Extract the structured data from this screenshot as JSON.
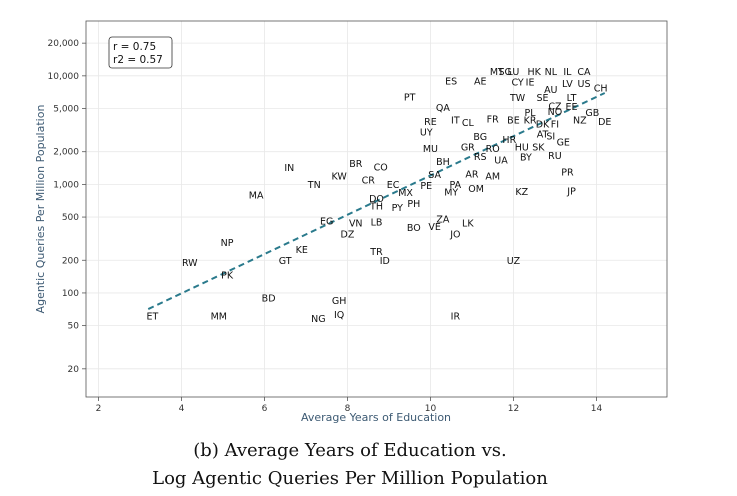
{
  "chart_data": {
    "type": "scatter",
    "title": "",
    "xlabel": "Average Years of Education",
    "ylabel": "Agentic Queries Per Million Population",
    "xlim": [
      1.7,
      15.7
    ],
    "ylim": [
      11,
      32000
    ],
    "yscale": "log",
    "xticks": [
      2,
      4,
      6,
      8,
      10,
      12,
      14
    ],
    "yticks": [
      20,
      50,
      100,
      200,
      500,
      1000,
      2000,
      5000,
      10000,
      20000
    ],
    "ytick_labels": [
      "20",
      "50",
      "100",
      "200",
      "500",
      "1,000",
      "2,000",
      "5,000",
      "10,000",
      "20,000"
    ],
    "grid": true,
    "stats": {
      "r": "r = 0.75",
      "r2": "r2 = 0.57"
    },
    "trend_line": {
      "x": [
        3.2,
        14.2
      ],
      "y": [
        71,
        6950
      ],
      "color": "#2a7a8c"
    },
    "points": [
      {
        "label": "ET",
        "x": 3.3,
        "y": 61
      },
      {
        "label": "MM",
        "x": 4.9,
        "y": 61
      },
      {
        "label": "RW",
        "x": 4.2,
        "y": 190
      },
      {
        "label": "PK",
        "x": 5.1,
        "y": 146
      },
      {
        "label": "NP",
        "x": 5.1,
        "y": 290
      },
      {
        "label": "MA",
        "x": 5.8,
        "y": 800
      },
      {
        "label": "BD",
        "x": 6.1,
        "y": 90
      },
      {
        "label": "GT",
        "x": 6.5,
        "y": 200
      },
      {
        "label": "KE",
        "x": 6.9,
        "y": 250
      },
      {
        "label": "IN",
        "x": 6.6,
        "y": 1430
      },
      {
        "label": "TN",
        "x": 7.2,
        "y": 1000
      },
      {
        "label": "NG",
        "x": 7.3,
        "y": 58
      },
      {
        "label": "GH",
        "x": 7.8,
        "y": 85
      },
      {
        "label": "IQ",
        "x": 7.8,
        "y": 63
      },
      {
        "label": "EG",
        "x": 7.5,
        "y": 460
      },
      {
        "label": "KW",
        "x": 7.8,
        "y": 1200
      },
      {
        "label": "DZ",
        "x": 8.0,
        "y": 350
      },
      {
        "label": "VN",
        "x": 8.2,
        "y": 440
      },
      {
        "label": "BR",
        "x": 8.2,
        "y": 1550
      },
      {
        "label": "CR",
        "x": 8.5,
        "y": 1100
      },
      {
        "label": "CO",
        "x": 8.8,
        "y": 1450
      },
      {
        "label": "LB",
        "x": 8.7,
        "y": 450
      },
      {
        "label": "TH",
        "x": 8.7,
        "y": 630
      },
      {
        "label": "DO",
        "x": 8.7,
        "y": 740
      },
      {
        "label": "TR",
        "x": 8.7,
        "y": 240
      },
      {
        "label": "ID",
        "x": 8.9,
        "y": 200
      },
      {
        "label": "EC",
        "x": 9.1,
        "y": 1000
      },
      {
        "label": "PY",
        "x": 9.2,
        "y": 610
      },
      {
        "label": "MX",
        "x": 9.4,
        "y": 840
      },
      {
        "label": "PH",
        "x": 9.6,
        "y": 670
      },
      {
        "label": "BO",
        "x": 9.6,
        "y": 400
      },
      {
        "label": "PE",
        "x": 9.9,
        "y": 980
      },
      {
        "label": "PT",
        "x": 9.5,
        "y": 6400
      },
      {
        "label": "UY",
        "x": 9.9,
        "y": 3050
      },
      {
        "label": "RE",
        "x": 10.0,
        "y": 3800
      },
      {
        "label": "MU",
        "x": 10.0,
        "y": 2150
      },
      {
        "label": "VE",
        "x": 10.1,
        "y": 410
      },
      {
        "label": "ZA",
        "x": 10.3,
        "y": 480
      },
      {
        "label": "SA",
        "x": 10.1,
        "y": 1230
      },
      {
        "label": "BH",
        "x": 10.3,
        "y": 1620
      },
      {
        "label": "QA",
        "x": 10.3,
        "y": 5100
      },
      {
        "label": "MY",
        "x": 10.5,
        "y": 850
      },
      {
        "label": "PA",
        "x": 10.6,
        "y": 1000
      },
      {
        "label": "JO",
        "x": 10.6,
        "y": 350
      },
      {
        "label": "ES",
        "x": 10.5,
        "y": 9000
      },
      {
        "label": "IT",
        "x": 10.6,
        "y": 3900
      },
      {
        "label": "IR",
        "x": 10.6,
        "y": 61
      },
      {
        "label": "CL",
        "x": 10.9,
        "y": 3700
      },
      {
        "label": "GR",
        "x": 10.9,
        "y": 2200
      },
      {
        "label": "LK",
        "x": 10.9,
        "y": 440
      },
      {
        "label": "AR",
        "x": 11.0,
        "y": 1250
      },
      {
        "label": "OM",
        "x": 11.1,
        "y": 920
      },
      {
        "label": "AE",
        "x": 11.2,
        "y": 9000
      },
      {
        "label": "BG",
        "x": 11.2,
        "y": 2750
      },
      {
        "label": "RS",
        "x": 11.2,
        "y": 1800
      },
      {
        "label": "FR",
        "x": 11.5,
        "y": 4000
      },
      {
        "label": "RO",
        "x": 11.5,
        "y": 2150
      },
      {
        "label": "AM",
        "x": 11.5,
        "y": 1200
      },
      {
        "label": "MT",
        "x": 11.6,
        "y": 11000
      },
      {
        "label": "SG",
        "x": 11.8,
        "y": 11000
      },
      {
        "label": "LU",
        "x": 12.0,
        "y": 11000
      },
      {
        "label": "UA",
        "x": 11.7,
        "y": 1680
      },
      {
        "label": "HR",
        "x": 11.9,
        "y": 2600
      },
      {
        "label": "BE",
        "x": 12.0,
        "y": 3900
      },
      {
        "label": "TW",
        "x": 12.1,
        "y": 6300
      },
      {
        "label": "CY",
        "x": 12.1,
        "y": 8800
      },
      {
        "label": "UZ",
        "x": 12.0,
        "y": 200
      },
      {
        "label": "KZ",
        "x": 12.2,
        "y": 860
      },
      {
        "label": "HU",
        "x": 12.2,
        "y": 2200
      },
      {
        "label": "IE",
        "x": 12.4,
        "y": 8800
      },
      {
        "label": "KR",
        "x": 12.4,
        "y": 3900
      },
      {
        "label": "BY",
        "x": 12.3,
        "y": 1780
      },
      {
        "label": "PL",
        "x": 12.4,
        "y": 4600
      },
      {
        "label": "HK",
        "x": 12.5,
        "y": 11000
      },
      {
        "label": "SE",
        "x": 12.7,
        "y": 6300
      },
      {
        "label": "DK",
        "x": 12.7,
        "y": 3600
      },
      {
        "label": "AT",
        "x": 12.7,
        "y": 2900
      },
      {
        "label": "SK",
        "x": 12.6,
        "y": 2200
      },
      {
        "label": "NL",
        "x": 12.9,
        "y": 11000
      },
      {
        "label": "AU",
        "x": 12.9,
        "y": 7500
      },
      {
        "label": "CZ",
        "x": 13.0,
        "y": 5300
      },
      {
        "label": "NO",
        "x": 13.0,
        "y": 4700
      },
      {
        "label": "FI",
        "x": 13.0,
        "y": 3600
      },
      {
        "label": "SI",
        "x": 12.9,
        "y": 2800
      },
      {
        "label": "RU",
        "x": 13.0,
        "y": 1850
      },
      {
        "label": "GE",
        "x": 13.2,
        "y": 2450
      },
      {
        "label": "IL",
        "x": 13.3,
        "y": 11000
      },
      {
        "label": "LV",
        "x": 13.3,
        "y": 8500
      },
      {
        "label": "LT",
        "x": 13.4,
        "y": 6300
      },
      {
        "label": "EE",
        "x": 13.4,
        "y": 5200
      },
      {
        "label": "PR",
        "x": 13.3,
        "y": 1300
      },
      {
        "label": "JP",
        "x": 13.4,
        "y": 870
      },
      {
        "label": "CA",
        "x": 13.7,
        "y": 11000
      },
      {
        "label": "US",
        "x": 13.7,
        "y": 8500
      },
      {
        "label": "NZ",
        "x": 13.6,
        "y": 3900
      },
      {
        "label": "GB",
        "x": 13.9,
        "y": 4600
      },
      {
        "label": "CH",
        "x": 14.1,
        "y": 7700
      },
      {
        "label": "DE",
        "x": 14.2,
        "y": 3800
      }
    ]
  },
  "caption": {
    "line1": "(b) Average Years of Education vs.",
    "line2": "Log Agentic Queries Per Million Population"
  }
}
